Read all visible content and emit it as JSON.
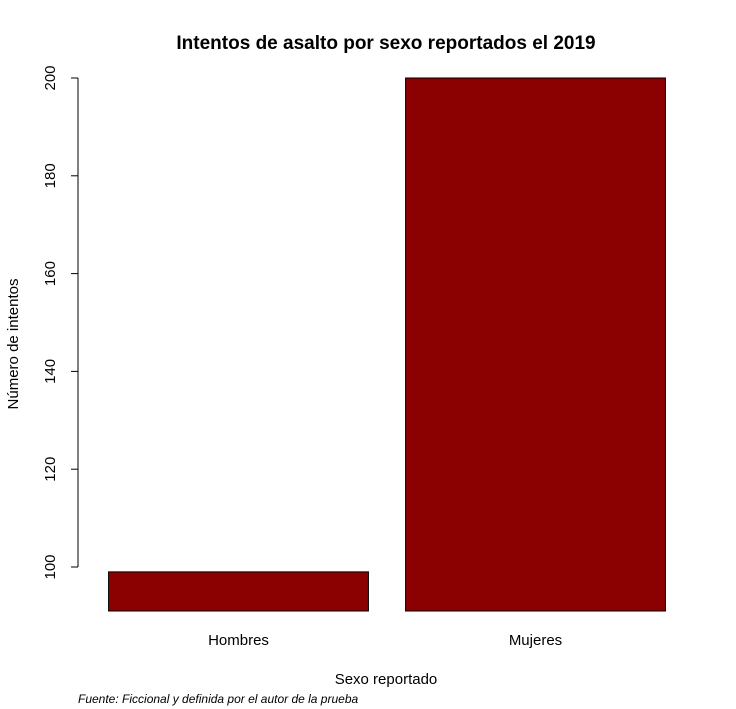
{
  "chart_data": {
    "type": "bar",
    "title": "Intentos de asalto por sexo reportados el 2019",
    "xlabel": "Sexo reportado",
    "ylabel": "Número de intentos",
    "caption": "Fuente: Ficcional y definida por el autor de la prueba",
    "categories": [
      "Hombres",
      "Mujeres"
    ],
    "values": [
      99,
      200
    ],
    "ylim": [
      91,
      200
    ],
    "yticks": [
      100,
      120,
      140,
      160,
      180,
      200
    ],
    "bar_color": "#8b0000",
    "grid": false
  }
}
